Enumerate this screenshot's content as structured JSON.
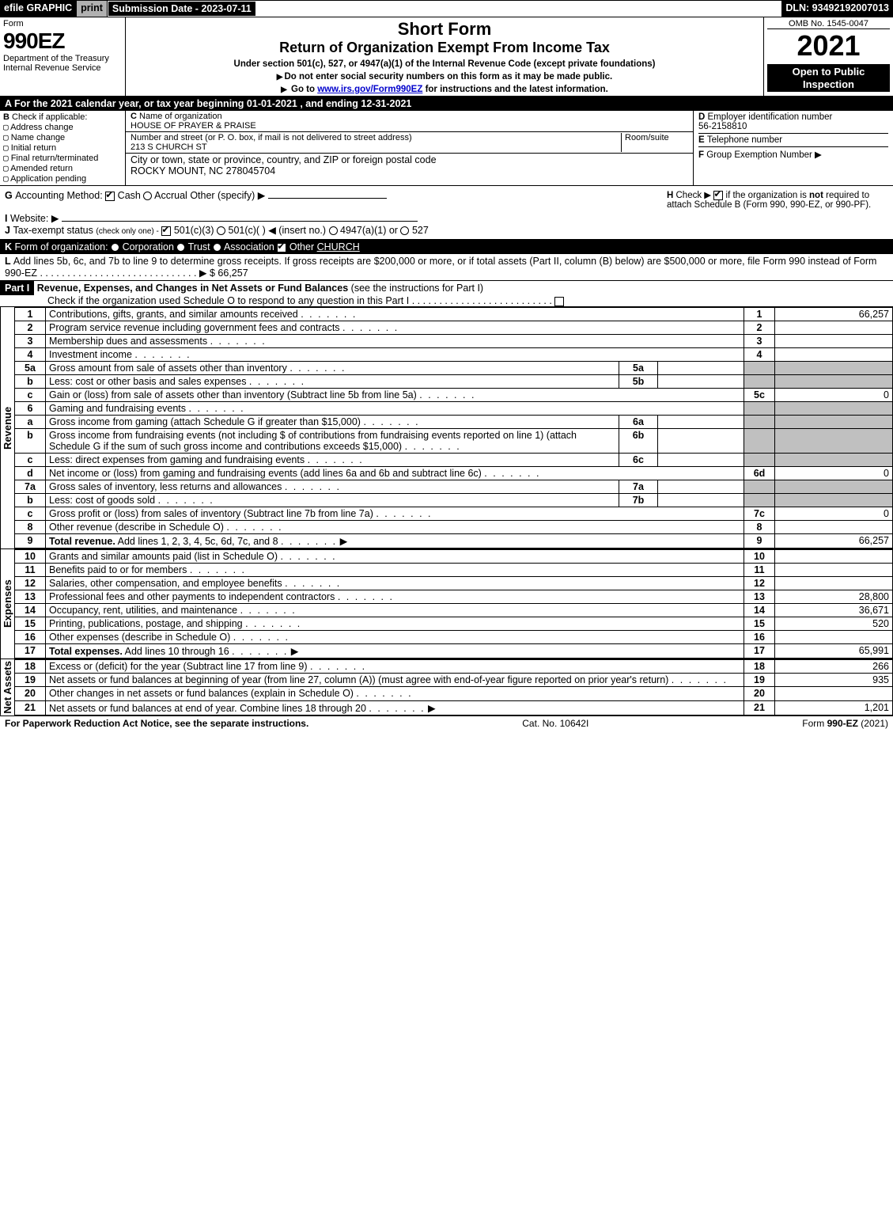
{
  "topbar": {
    "efile": "efile GRAPHIC",
    "print": "print",
    "subdate": "Submission Date - 2023-07-11",
    "dln": "DLN: 93492192007013"
  },
  "header": {
    "form_word": "Form",
    "form_number": "990EZ",
    "dept": "Department of the Treasury\nInternal Revenue Service",
    "shortform": "Short Form",
    "returnline": "Return of Organization Exempt From Income Tax",
    "undersection": "Under section 501(c), 527, or 4947(a)(1) of the Internal Revenue Code (except private foundations)",
    "nossn": "Do not enter social security numbers on this form as it may be made public.",
    "goto_pre": "Go to ",
    "goto_link": "www.irs.gov/Form990EZ",
    "goto_post": " for instructions and the latest information.",
    "omb": "OMB No. 1545-0047",
    "year": "2021",
    "open": "Open to Public Inspection"
  },
  "A": {
    "line": "For the 2021 calendar year, or tax year beginning 01-01-2021 , and ending 12-31-2021"
  },
  "B": {
    "label": "Check if applicable:",
    "opts": [
      "Address change",
      "Name change",
      "Initial return",
      "Final return/terminated",
      "Amended return",
      "Application pending"
    ]
  },
  "C": {
    "name_label": "Name of organization",
    "name": "HOUSE OF PRAYER & PRAISE",
    "street_label": "Number and street (or P. O. box, if mail is not delivered to street address)",
    "room_label": "Room/suite",
    "street": "213 S CHURCH ST",
    "city_label": "City or town, state or province, country, and ZIP or foreign postal code",
    "city": "ROCKY MOUNT, NC  278045704"
  },
  "D": {
    "label": "Employer identification number",
    "ein": "56-2158810"
  },
  "E": {
    "label": "Telephone number",
    "val": ""
  },
  "F": {
    "label": "Group Exemption Number",
    "arrow": "▶"
  },
  "G": {
    "label": "Accounting Method:",
    "cash": "Cash",
    "accrual": "Accrual",
    "other": "Other (specify) ▶"
  },
  "H": {
    "label": "Check ▶",
    "box": "if the organization is ",
    "bold": "not",
    "rest": " required to attach Schedule B (Form 990, 990-EZ, or 990-PF)."
  },
  "I": {
    "label": "Website: ▶",
    "val": ""
  },
  "J": {
    "label": "Tax-exempt status",
    "sub": "(check only one) -",
    "o1": "501(c)(3)",
    "o2": "501(c)(  )",
    "ins": "◀ (insert no.)",
    "o3": "4947(a)(1) or",
    "o4": "527"
  },
  "K": {
    "label": "Form of organization:",
    "o1": "Corporation",
    "o2": "Trust",
    "o3": "Association",
    "o4": "Other",
    "other": "CHURCH"
  },
  "L": {
    "text": "Add lines 5b, 6c, and 7b to line 9 to determine gross receipts. If gross receipts are $200,000 or more, or if total assets (Part II, column (B) below) are $500,000 or more, file Form 990 instead of Form 990-EZ",
    "dots": " . . . . . . . . . . . . . . . . . . . . . . . . . . . . . ▶",
    "amount": "$ 66,257"
  },
  "PartI": {
    "title": "Part I",
    "desc": "Revenue, Expenses, and Changes in Net Assets or Fund Balances",
    "desc2": "(see the instructions for Part I)",
    "check": "Check if the organization used Schedule O to respond to any question in this Part I",
    "checkbox_checked": false
  },
  "revenue": {
    "label": "Revenue",
    "rows": [
      {
        "n": "1",
        "d": "Contributions, gifts, grants, and similar amounts received",
        "rn": "1",
        "amt": "66,257"
      },
      {
        "n": "2",
        "d": "Program service revenue including government fees and contracts",
        "rn": "2",
        "amt": ""
      },
      {
        "n": "3",
        "d": "Membership dues and assessments",
        "rn": "3",
        "amt": ""
      },
      {
        "n": "4",
        "d": "Investment income",
        "rn": "4",
        "amt": ""
      },
      {
        "n": "5a",
        "d": "Gross amount from sale of assets other than inventory",
        "mid": "5a",
        "midamt": ""
      },
      {
        "n": "b",
        "d": "Less: cost or other basis and sales expenses",
        "mid": "5b",
        "midamt": ""
      },
      {
        "n": "c",
        "d": "Gain or (loss) from sale of assets other than inventory (Subtract line 5b from line 5a)",
        "rn": "5c",
        "amt": "0"
      },
      {
        "n": "6",
        "d": "Gaming and fundraising events"
      },
      {
        "n": "a",
        "d": "Gross income from gaming (attach Schedule G if greater than $15,000)",
        "mid": "6a",
        "midamt": ""
      },
      {
        "n": "b",
        "d": "Gross income from fundraising events (not including $                       of contributions from fundraising events reported on line 1) (attach Schedule G if the sum of such gross income and contributions exceeds $15,000)",
        "mid": "6b",
        "midamt": ""
      },
      {
        "n": "c",
        "d": "Less: direct expenses from gaming and fundraising events",
        "mid": "6c",
        "midamt": ""
      },
      {
        "n": "d",
        "d": "Net income or (loss) from gaming and fundraising events (add lines 6a and 6b and subtract line 6c)",
        "rn": "6d",
        "amt": "0"
      },
      {
        "n": "7a",
        "d": "Gross sales of inventory, less returns and allowances",
        "mid": "7a",
        "midamt": ""
      },
      {
        "n": "b",
        "d": "Less: cost of goods sold",
        "mid": "7b",
        "midamt": ""
      },
      {
        "n": "c",
        "d": "Gross profit or (loss) from sales of inventory (Subtract line 7b from line 7a)",
        "rn": "7c",
        "amt": "0"
      },
      {
        "n": "8",
        "d": "Other revenue (describe in Schedule O)",
        "rn": "8",
        "amt": ""
      },
      {
        "n": "9",
        "d": "Total revenue. Add lines 1, 2, 3, 4, 5c, 6d, 7c, and 8",
        "bold": true,
        "arrow": true,
        "rn": "9",
        "amt": "66,257"
      }
    ]
  },
  "expenses": {
    "label": "Expenses",
    "rows": [
      {
        "n": "10",
        "d": "Grants and similar amounts paid (list in Schedule O)",
        "rn": "10",
        "amt": ""
      },
      {
        "n": "11",
        "d": "Benefits paid to or for members",
        "rn": "11",
        "amt": ""
      },
      {
        "n": "12",
        "d": "Salaries, other compensation, and employee benefits",
        "rn": "12",
        "amt": ""
      },
      {
        "n": "13",
        "d": "Professional fees and other payments to independent contractors",
        "rn": "13",
        "amt": "28,800"
      },
      {
        "n": "14",
        "d": "Occupancy, rent, utilities, and maintenance",
        "rn": "14",
        "amt": "36,671"
      },
      {
        "n": "15",
        "d": "Printing, publications, postage, and shipping",
        "rn": "15",
        "amt": "520"
      },
      {
        "n": "16",
        "d": "Other expenses (describe in Schedule O)",
        "rn": "16",
        "amt": ""
      },
      {
        "n": "17",
        "d": "Total expenses. Add lines 10 through 16",
        "bold": true,
        "arrow": true,
        "rn": "17",
        "amt": "65,991"
      }
    ]
  },
  "netassets": {
    "label": "Net Assets",
    "rows": [
      {
        "n": "18",
        "d": "Excess or (deficit) for the year (Subtract line 17 from line 9)",
        "rn": "18",
        "amt": "266"
      },
      {
        "n": "19",
        "d": "Net assets or fund balances at beginning of year (from line 27, column (A)) (must agree with end-of-year figure reported on prior year's return)",
        "rn": "19",
        "amt": "935"
      },
      {
        "n": "20",
        "d": "Other changes in net assets or fund balances (explain in Schedule O)",
        "rn": "20",
        "amt": ""
      },
      {
        "n": "21",
        "d": "Net assets or fund balances at end of year. Combine lines 18 through 20",
        "arrow": true,
        "rn": "21",
        "amt": "1,201"
      }
    ]
  },
  "footer": {
    "left": "For Paperwork Reduction Act Notice, see the separate instructions.",
    "mid": "Cat. No. 10642I",
    "right_pre": "Form ",
    "right_bold": "990-EZ",
    "right_post": " (2021)"
  },
  "colors": {
    "black": "#000000",
    "white": "#ffffff",
    "grey": "#b0b0b0",
    "shade": "#c0c0c0",
    "link": "#0000cc"
  }
}
